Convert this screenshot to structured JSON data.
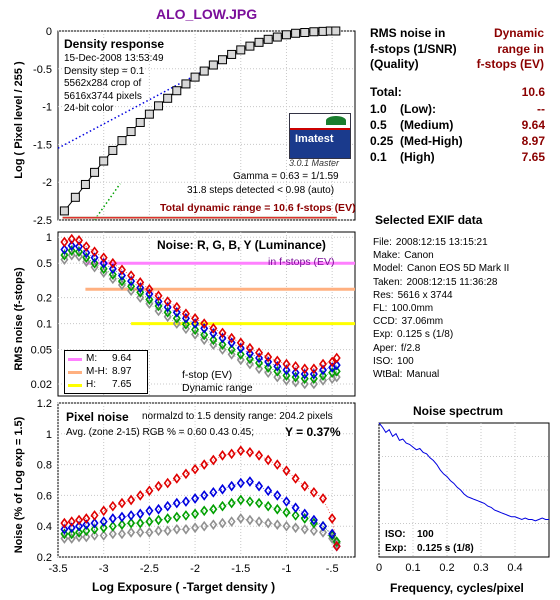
{
  "title": "ALO_LOW.JPG",
  "colors": {
    "title": "#7b0f9a",
    "dark_red": "#8b0000",
    "red": "#e00000",
    "green": "#00a000",
    "blue": "#0000e0",
    "gray": "#909090",
    "chart_bg": "#ffffff",
    "grid": "#c8c8c8",
    "pink": "#ff80ff",
    "salmon": "#ffb080",
    "yellow": "#ffff00",
    "imatest_blue": "#1a3a8c"
  },
  "density": {
    "box_title": "Density response",
    "info_lines": [
      "15-Dec-2008 13:53:49",
      "Density step = 0.1",
      "5562x284 crop of",
      "5616x3744 pixels",
      "24-bit color"
    ],
    "logo_text": "Imatest",
    "logo_version": "3.0.1  Master",
    "gamma": "Gamma = 0.63 = 1/1.59",
    "steps": "31.8 steps detected < 0.98 (auto)",
    "total": "Total dynamic range = 10.6 f-stops (EV)",
    "ylabel": "Log ( Pixel level / 255 )"
  },
  "noise_rgb": {
    "box_title": "Noise: R, G, B, Y (Luminance)",
    "unit_note": "in f-stops (EV)",
    "ylabel": "RMS noise (f-stops)",
    "legend": [
      {
        "label": "M:",
        "value": "9.64"
      },
      {
        "label": "M-H:",
        "value": "8.97"
      },
      {
        "label": "H:",
        "value": "7.65"
      }
    ],
    "fstop_note": "f-stop (EV)",
    "dr_note": "Dynamic range"
  },
  "pixel_noise": {
    "box_title": "Pixel noise",
    "normalized": "normalzd to 1.5 density range: 204.2 pixels",
    "avg_line": "Avg. (zone 2-15) RGB % = 0.60  0.43  0.45;",
    "y_value": "Y = 0.37%",
    "ylabel": "Noise (% of Log exp = 1.5)",
    "xlabel": "Log Exposure ( -Target density )"
  },
  "spectrum": {
    "title": "Noise spectrum",
    "xlabel": "Frequency, cycles/pixel",
    "iso_label": "ISO:",
    "iso_value": "100",
    "exp_label": "Exp:",
    "exp_value": "0.125 s   (1/8)"
  },
  "dr_table": {
    "head_left": [
      "RMS noise in",
      "f-stops (1/SNR)",
      "(Quality)"
    ],
    "head_right": [
      "Dynamic",
      "range in",
      "f-stops (EV)"
    ],
    "rows": [
      {
        "label": "Total:",
        "value": "10.6"
      },
      {
        "label": "1.0    (Low):",
        "value": "--"
      },
      {
        "label": "0.5    (Medium)",
        "value": "9.64"
      },
      {
        "label": "0.25  (Med-High)",
        "value": "8.97"
      },
      {
        "label": "0.1    (High)",
        "value": "7.65"
      }
    ]
  },
  "exif": {
    "title": "Selected EXIF data",
    "rows": [
      {
        "k": "File:",
        "v": "2008:12:15 13:15:21"
      },
      {
        "k": "Make:",
        "v": "Canon"
      },
      {
        "k": "Model:",
        "v": "Canon EOS 5D Mark II"
      },
      {
        "k": "Taken:",
        "v": "2008:12:15 11:36:28"
      },
      {
        "k": "Res:",
        "v": "5616 x 3744"
      },
      {
        "k": "FL:",
        "v": "100.0mm"
      },
      {
        "k": "CCD:",
        "v": "37.06mm"
      },
      {
        "k": "Exp:",
        "v": "0.125 s  (1/8)"
      },
      {
        "k": "Aper:",
        "v": "f/2.8"
      },
      {
        "k": "ISO:",
        "v": "100"
      },
      {
        "k": "WtBal:",
        "v": "Manual"
      }
    ]
  },
  "chart_data": [
    {
      "id": "density",
      "type": "line",
      "title": "Density response",
      "ylabel": "Log ( Pixel level / 255 )",
      "xlim": [
        -3.5,
        -0.25
      ],
      "ylim": [
        -2.5,
        0
      ],
      "yticks": [
        0,
        -0.5,
        -1,
        -1.5,
        -2,
        -2.5
      ],
      "yticklabels": [
        "0",
        "-0.5",
        "-1",
        "-1.5",
        "-2",
        "-2.5"
      ],
      "grid": true,
      "series": [
        {
          "style": "gray-squares",
          "x": [
            -3.43,
            -3.31,
            -3.2,
            -3.1,
            -3.0,
            -2.9,
            -2.8,
            -2.7,
            -2.6,
            -2.5,
            -2.4,
            -2.3,
            -2.2,
            -2.1,
            -2.0,
            -1.9,
            -1.8,
            -1.7,
            -1.6,
            -1.5,
            -1.4,
            -1.3,
            -1.2,
            -1.1,
            -1.0,
            -0.9,
            -0.8,
            -0.7,
            -0.6,
            -0.52,
            -0.46
          ],
          "y": [
            -2.38,
            -2.2,
            -2.03,
            -1.87,
            -1.72,
            -1.58,
            -1.45,
            -1.33,
            -1.21,
            -1.1,
            -0.99,
            -0.89,
            -0.79,
            -0.7,
            -0.61,
            -0.53,
            -0.45,
            -0.38,
            -0.31,
            -0.25,
            -0.2,
            -0.15,
            -0.11,
            -0.08,
            -0.05,
            -0.03,
            -0.02,
            -0.01,
            -0.005,
            0,
            0
          ]
        },
        {
          "style": "blue-dotted",
          "x": [
            -3.5,
            -1.55
          ],
          "y": [
            -1.55,
            -0.3
          ]
        },
        {
          "style": "green-dotted",
          "x": [
            -3.1,
            -2.82
          ],
          "y": [
            -2.5,
            -2.02
          ]
        },
        {
          "style": "red-baseline",
          "x": [
            -3.45,
            -0.45
          ],
          "y": [
            -2.47,
            -2.47
          ]
        }
      ]
    },
    {
      "id": "noise-rgby",
      "type": "scatter",
      "title": "Noise: R, G, B, Y (Luminance)",
      "ylabel": "RMS noise (f-stops)",
      "ylim": [
        0.0145,
        1.15
      ],
      "ylog": true,
      "yticks": [
        1,
        0.5,
        0.2,
        0.1,
        0.05,
        0.02
      ],
      "yticklabels": [
        "1",
        "0.5",
        "0.2",
        "0.1",
        "0.05",
        "0.02"
      ],
      "grid": true,
      "x": [
        -3.43,
        -3.35,
        -3.27,
        -3.19,
        -3.1,
        -3.0,
        -2.9,
        -2.8,
        -2.7,
        -2.6,
        -2.5,
        -2.4,
        -2.3,
        -2.2,
        -2.1,
        -2.0,
        -1.9,
        -1.8,
        -1.7,
        -1.6,
        -1.5,
        -1.4,
        -1.3,
        -1.2,
        -1.1,
        -1.0,
        -0.9,
        -0.8,
        -0.7,
        -0.6,
        -0.5,
        -0.45
      ],
      "series": [
        {
          "name": "R",
          "values": [
            0.88,
            0.95,
            0.92,
            0.78,
            0.68,
            0.58,
            0.5,
            0.42,
            0.36,
            0.3,
            0.25,
            0.21,
            0.18,
            0.155,
            0.13,
            0.115,
            0.1,
            0.088,
            0.078,
            0.068,
            0.06,
            0.052,
            0.046,
            0.041,
            0.037,
            0.034,
            0.032,
            0.03,
            0.03,
            0.034,
            0.036,
            0.04
          ]
        },
        {
          "name": "B",
          "values": [
            0.72,
            0.8,
            0.78,
            0.66,
            0.58,
            0.5,
            0.43,
            0.36,
            0.31,
            0.26,
            0.22,
            0.18,
            0.155,
            0.135,
            0.115,
            0.1,
            0.088,
            0.077,
            0.068,
            0.06,
            0.052,
            0.045,
            0.04,
            0.036,
            0.032,
            0.029,
            0.027,
            0.026,
            0.026,
            0.029,
            0.031,
            0.033
          ]
        },
        {
          "name": "G",
          "values": [
            0.62,
            0.7,
            0.68,
            0.58,
            0.5,
            0.43,
            0.37,
            0.31,
            0.27,
            0.23,
            0.19,
            0.16,
            0.135,
            0.115,
            0.098,
            0.085,
            0.074,
            0.065,
            0.057,
            0.05,
            0.044,
            0.039,
            0.035,
            0.031,
            0.028,
            0.025,
            0.024,
            0.023,
            0.023,
            0.025,
            0.027,
            0.028
          ]
        },
        {
          "name": "Y",
          "values": [
            0.55,
            0.62,
            0.6,
            0.52,
            0.45,
            0.39,
            0.33,
            0.28,
            0.24,
            0.2,
            0.17,
            0.14,
            0.12,
            0.1,
            0.087,
            0.075,
            0.065,
            0.057,
            0.05,
            0.044,
            0.038,
            0.034,
            0.03,
            0.027,
            0.024,
            0.022,
            0.021,
            0.02,
            0.02,
            0.022,
            0.023,
            0.024
          ]
        }
      ],
      "hlines": [
        {
          "name": "M",
          "y": 0.5,
          "x": [
            -3.2,
            -0.25
          ]
        },
        {
          "name": "M-H",
          "y": 0.25,
          "x": [
            -3.2,
            -0.25
          ]
        },
        {
          "name": "H",
          "y": 0.1,
          "x": [
            -2.7,
            -0.25
          ]
        }
      ]
    },
    {
      "id": "pixel-noise",
      "type": "scatter",
      "title": "Pixel noise",
      "xlabel": "Log Exposure ( -Target density )",
      "ylabel": "Noise (% of Log exp = 1.5)",
      "xlim": [
        -3.5,
        -0.25
      ],
      "ylim": [
        0.2,
        1.2
      ],
      "xticks": [
        -3.5,
        -3,
        -2.5,
        -2,
        -1.5,
        -1,
        -0.5
      ],
      "xticklabels": [
        "-3.5",
        "-3",
        "-2.5",
        "-2",
        "-1.5",
        "-1",
        "-.5"
      ],
      "yticks": [
        1.2,
        1,
        0.8,
        0.6,
        0.4,
        0.2
      ],
      "yticklabels": [
        "1.2",
        "1",
        "0.8",
        "0.6",
        "0.4",
        "0.2"
      ],
      "grid": true,
      "x": [
        -3.43,
        -3.35,
        -3.27,
        -3.19,
        -3.1,
        -3.0,
        -2.9,
        -2.8,
        -2.7,
        -2.6,
        -2.5,
        -2.4,
        -2.3,
        -2.2,
        -2.1,
        -2.0,
        -1.9,
        -1.8,
        -1.7,
        -1.6,
        -1.5,
        -1.4,
        -1.3,
        -1.2,
        -1.1,
        -1.0,
        -0.9,
        -0.8,
        -0.7,
        -0.6,
        -0.5,
        -0.45
      ],
      "series": [
        {
          "name": "R",
          "values": [
            0.42,
            0.43,
            0.44,
            0.45,
            0.47,
            0.5,
            0.53,
            0.55,
            0.57,
            0.6,
            0.63,
            0.66,
            0.68,
            0.71,
            0.74,
            0.77,
            0.8,
            0.83,
            0.86,
            0.87,
            0.89,
            0.88,
            0.86,
            0.83,
            0.8,
            0.76,
            0.71,
            0.66,
            0.62,
            0.58,
            0.45,
            0.27
          ]
        },
        {
          "name": "B",
          "values": [
            0.38,
            0.39,
            0.4,
            0.41,
            0.42,
            0.43,
            0.45,
            0.46,
            0.47,
            0.48,
            0.5,
            0.51,
            0.53,
            0.55,
            0.56,
            0.58,
            0.6,
            0.62,
            0.64,
            0.66,
            0.68,
            0.69,
            0.66,
            0.63,
            0.6,
            0.56,
            0.52,
            0.48,
            0.44,
            0.4,
            0.35,
            0.27
          ]
        },
        {
          "name": "G",
          "values": [
            0.35,
            0.35,
            0.36,
            0.37,
            0.38,
            0.39,
            0.4,
            0.41,
            0.42,
            0.42,
            0.43,
            0.44,
            0.45,
            0.46,
            0.47,
            0.48,
            0.5,
            0.51,
            0.53,
            0.55,
            0.57,
            0.56,
            0.55,
            0.53,
            0.51,
            0.49,
            0.47,
            0.45,
            0.42,
            0.4,
            0.34,
            0.3
          ]
        },
        {
          "name": "Y",
          "values": [
            0.32,
            0.32,
            0.33,
            0.33,
            0.34,
            0.34,
            0.35,
            0.35,
            0.36,
            0.36,
            0.36,
            0.37,
            0.37,
            0.38,
            0.38,
            0.39,
            0.4,
            0.41,
            0.42,
            0.43,
            0.45,
            0.44,
            0.43,
            0.42,
            0.41,
            0.4,
            0.39,
            0.38,
            0.37,
            0.36,
            0.32,
            0.29
          ]
        }
      ]
    },
    {
      "id": "noise-spectrum",
      "type": "line",
      "title": "Noise spectrum",
      "xlabel": "Frequency, cycles/pixel",
      "xlim": [
        0,
        0.5
      ],
      "ylim": [
        0,
        1
      ],
      "xticks": [
        0,
        0.1,
        0.2,
        0.3,
        0.4
      ],
      "xticklabels": [
        "0",
        "0.1",
        "0.2",
        "0.3",
        "0.4"
      ],
      "grid": true,
      "series": [
        {
          "name": "spectrum",
          "x": [
            0,
            0.01,
            0.02,
            0.03,
            0.04,
            0.05,
            0.06,
            0.07,
            0.08,
            0.09,
            0.1,
            0.11,
            0.12,
            0.13,
            0.14,
            0.15,
            0.16,
            0.17,
            0.18,
            0.19,
            0.2,
            0.21,
            0.22,
            0.23,
            0.24,
            0.25,
            0.26,
            0.27,
            0.28,
            0.29,
            0.3,
            0.31,
            0.32,
            0.33,
            0.34,
            0.35,
            0.36,
            0.37,
            0.38,
            0.39,
            0.4,
            0.41,
            0.42,
            0.43,
            0.44,
            0.45,
            0.46,
            0.47,
            0.48,
            0.49,
            0.5
          ],
          "y": [
            1.0,
            0.97,
            0.93,
            0.95,
            0.9,
            0.92,
            0.87,
            0.88,
            0.85,
            0.84,
            0.82,
            0.8,
            0.81,
            0.78,
            0.77,
            0.74,
            0.72,
            0.69,
            0.65,
            0.62,
            0.6,
            0.57,
            0.55,
            0.52,
            0.5,
            0.47,
            0.45,
            0.44,
            0.43,
            0.42,
            0.41,
            0.4,
            0.38,
            0.37,
            0.35,
            0.34,
            0.33,
            0.32,
            0.31,
            0.3,
            0.3,
            0.29,
            0.28,
            0.29,
            0.28,
            0.28,
            0.27,
            0.28,
            0.29,
            0.28,
            0.28
          ]
        }
      ]
    }
  ]
}
